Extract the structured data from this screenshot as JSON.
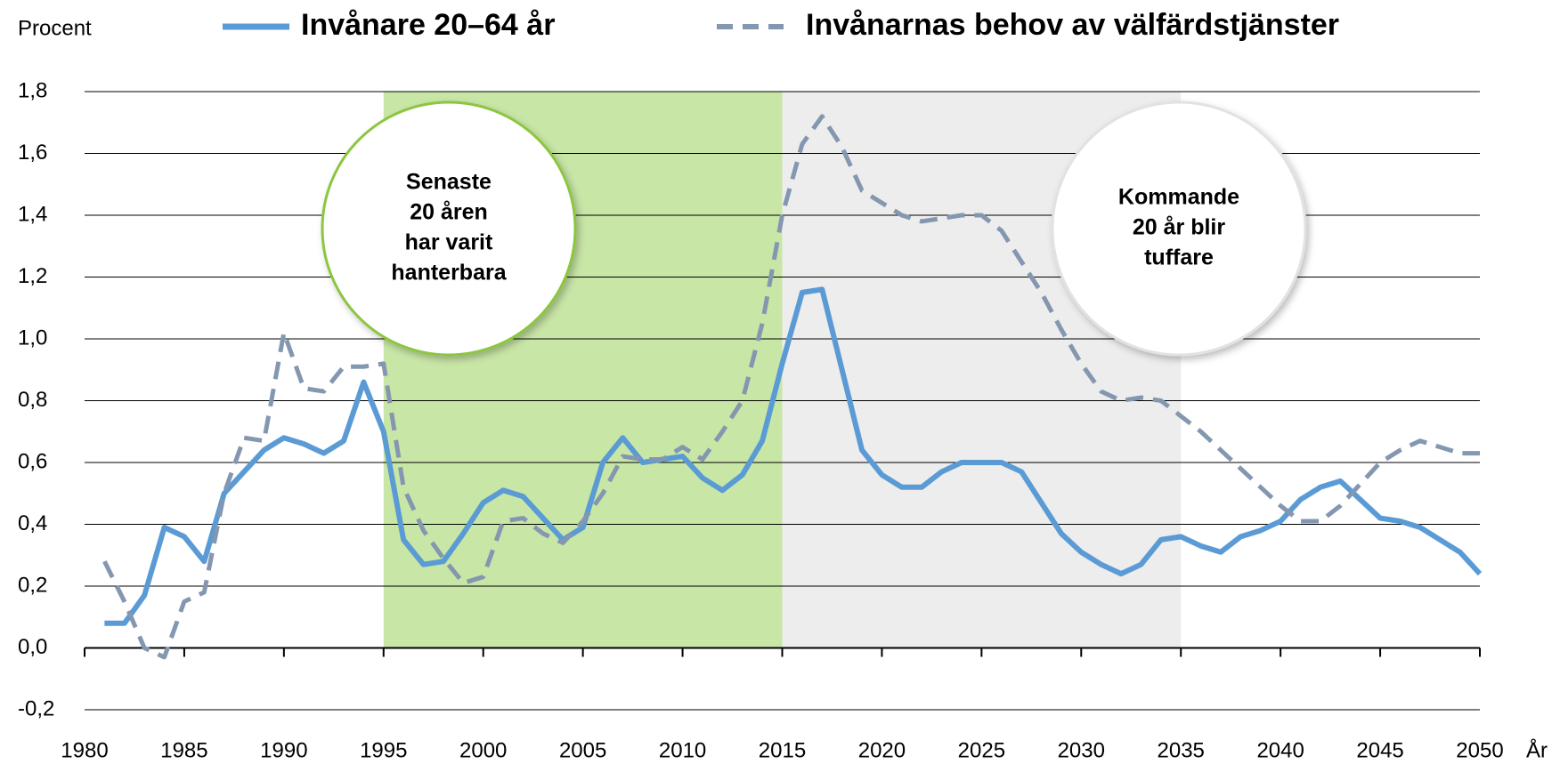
{
  "chart_data": {
    "type": "line",
    "y_label": "Procent",
    "x_label": "År",
    "x": [
      1981,
      1982,
      1983,
      1984,
      1985,
      1986,
      1987,
      1988,
      1989,
      1990,
      1991,
      1992,
      1993,
      1994,
      1995,
      1996,
      1997,
      1998,
      1999,
      2000,
      2001,
      2002,
      2003,
      2004,
      2005,
      2006,
      2007,
      2008,
      2009,
      2010,
      2011,
      2012,
      2013,
      2014,
      2015,
      2016,
      2017,
      2018,
      2019,
      2020,
      2021,
      2022,
      2023,
      2024,
      2025,
      2026,
      2027,
      2028,
      2029,
      2030,
      2031,
      2032,
      2033,
      2034,
      2035,
      2036,
      2037,
      2038,
      2039,
      2040,
      2041,
      2042,
      2043,
      2044,
      2045,
      2046,
      2047,
      2048,
      2049,
      2050
    ],
    "series": [
      {
        "name": "Invånare 20–64 år",
        "color": "#5b9bd5",
        "dashed": false,
        "values": [
          0.08,
          0.08,
          0.17,
          0.39,
          0.36,
          0.28,
          0.5,
          0.57,
          0.64,
          0.68,
          0.66,
          0.63,
          0.67,
          0.86,
          0.7,
          0.35,
          0.27,
          0.28,
          0.37,
          0.47,
          0.51,
          0.49,
          0.42,
          0.35,
          0.39,
          0.6,
          0.68,
          0.6,
          0.61,
          0.62,
          0.55,
          0.51,
          0.56,
          0.67,
          0.92,
          1.15,
          1.16,
          0.9,
          0.64,
          0.56,
          0.52,
          0.52,
          0.57,
          0.6,
          0.6,
          0.6,
          0.57,
          0.47,
          0.37,
          0.31,
          0.27,
          0.24,
          0.27,
          0.35,
          0.36,
          0.33,
          0.31,
          0.36,
          0.38,
          0.41,
          0.48,
          0.52,
          0.54,
          0.48,
          0.42,
          0.41,
          0.39,
          0.35,
          0.31,
          0.24
        ]
      },
      {
        "name": "Invånarnas behov av välfärdstjänster",
        "color": "#8497b0",
        "dashed": true,
        "values": [
          0.28,
          0.15,
          0.0,
          -0.03,
          0.15,
          0.18,
          0.5,
          0.68,
          0.67,
          1.02,
          0.84,
          0.83,
          0.91,
          0.91,
          0.92,
          0.52,
          0.38,
          0.29,
          0.21,
          0.23,
          0.41,
          0.42,
          0.37,
          0.34,
          0.41,
          0.5,
          0.62,
          0.61,
          0.61,
          0.65,
          0.61,
          0.7,
          0.8,
          1.05,
          1.4,
          1.63,
          1.72,
          1.62,
          1.48,
          1.44,
          1.4,
          1.38,
          1.39,
          1.4,
          1.4,
          1.35,
          1.25,
          1.15,
          1.03,
          0.92,
          0.83,
          0.8,
          0.81,
          0.8,
          0.75,
          0.7,
          0.64,
          0.58,
          0.52,
          0.46,
          0.41,
          0.41,
          0.46,
          0.53,
          0.6,
          0.64,
          0.67,
          0.65,
          0.63,
          0.63
        ]
      }
    ],
    "bands": [
      {
        "from": 1995,
        "to": 2015,
        "color": "#c8e6a6",
        "note": [
          "Senaste",
          "20 åren",
          "har varit",
          "hanterbara"
        ],
        "ring": "#8cc63f"
      },
      {
        "from": 2015,
        "to": 2035,
        "color": "#ededed",
        "note": [
          "Kommande",
          "20 år blir",
          "tuffare"
        ],
        "ring": "#e2e2e2"
      }
    ],
    "xlim": [
      1980,
      2050
    ],
    "ylim": [
      -0.2,
      1.8
    ],
    "xticks": [
      1980,
      1985,
      1990,
      1995,
      2000,
      2005,
      2010,
      2015,
      2020,
      2025,
      2030,
      2035,
      2040,
      2045,
      2050
    ],
    "yticks": [
      {
        "value": -0.2,
        "label": "-0,2"
      },
      {
        "value": 0,
        "label": "0,0"
      },
      {
        "value": 0.2,
        "label": "0,2"
      },
      {
        "value": 0.4,
        "label": "0,4"
      },
      {
        "value": 0.6,
        "label": "0,6"
      },
      {
        "value": 0.8,
        "label": "0,8"
      },
      {
        "value": 1,
        "label": "1,0"
      },
      {
        "value": 1.2,
        "label": "1,2"
      },
      {
        "value": 1.4,
        "label": "1,4"
      },
      {
        "value": 1.6,
        "label": "1,6"
      },
      {
        "value": 1.8,
        "label": "1,8"
      }
    ],
    "grid": true
  }
}
